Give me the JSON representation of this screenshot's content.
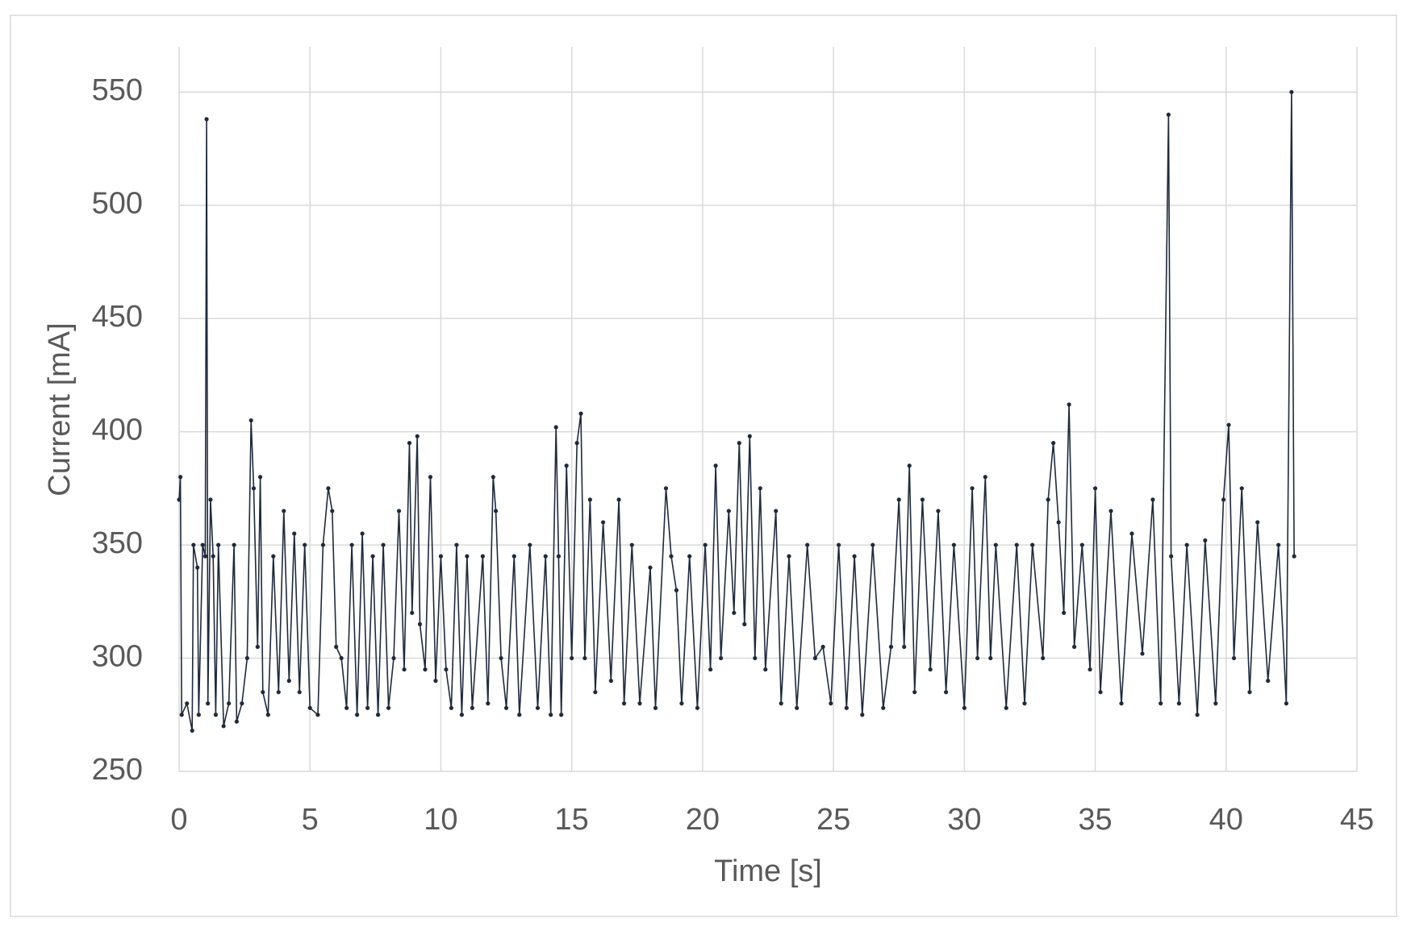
{
  "chart_data": {
    "type": "line",
    "xlabel": "Time [s]",
    "ylabel": "Current [mA]",
    "x": [
      0,
      0.05,
      0.1,
      0.3,
      0.5,
      0.55,
      0.7,
      0.75,
      0.9,
      1.0,
      1.05,
      1.1,
      1.2,
      1.3,
      1.4,
      1.5,
      1.7,
      1.9,
      2.1,
      2.2,
      2.4,
      2.6,
      2.75,
      2.85,
      3.0,
      3.1,
      3.2,
      3.4,
      3.6,
      3.8,
      4.0,
      4.2,
      4.4,
      4.6,
      4.8,
      5.0,
      5.3,
      5.5,
      5.7,
      5.85,
      6.0,
      6.2,
      6.4,
      6.6,
      6.8,
      7.0,
      7.2,
      7.4,
      7.6,
      7.8,
      8.0,
      8.2,
      8.4,
      8.6,
      8.8,
      8.9,
      9.1,
      9.2,
      9.4,
      9.6,
      9.8,
      10.0,
      10.2,
      10.4,
      10.6,
      10.8,
      11.0,
      11.2,
      11.6,
      11.8,
      12.0,
      12.1,
      12.3,
      12.5,
      12.8,
      13.0,
      13.4,
      13.7,
      14.0,
      14.2,
      14.4,
      14.5,
      14.6,
      14.8,
      15.0,
      15.2,
      15.35,
      15.5,
      15.7,
      15.9,
      16.2,
      16.5,
      16.8,
      17.0,
      17.3,
      17.6,
      18.0,
      18.2,
      18.6,
      18.8,
      19.0,
      19.2,
      19.5,
      19.8,
      20.1,
      20.3,
      20.5,
      20.7,
      21.0,
      21.2,
      21.4,
      21.6,
      21.8,
      22.0,
      22.2,
      22.4,
      22.8,
      23.0,
      23.3,
      23.6,
      24.0,
      24.3,
      24.6,
      24.9,
      25.2,
      25.5,
      25.8,
      26.1,
      26.5,
      26.9,
      27.2,
      27.5,
      27.7,
      27.9,
      28.1,
      28.4,
      28.7,
      29.0,
      29.3,
      29.6,
      30.0,
      30.3,
      30.5,
      30.8,
      31.0,
      31.2,
      31.6,
      32.0,
      32.3,
      32.6,
      33.0,
      33.2,
      33.4,
      33.6,
      33.8,
      34.0,
      34.2,
      34.5,
      34.8,
      35.0,
      35.2,
      35.6,
      36.0,
      36.4,
      36.8,
      37.2,
      37.5,
      37.8,
      37.9,
      38.2,
      38.5,
      38.9,
      39.2,
      39.6,
      39.9,
      40.1,
      40.3,
      40.6,
      40.9,
      41.2,
      41.6,
      42.0,
      42.3,
      42.5,
      42.6
    ],
    "series": [
      {
        "name": "Current",
        "color": "#1f2a3c",
        "values": [
          370,
          380,
          275,
          280,
          268,
          350,
          340,
          275,
          350,
          345,
          538,
          280,
          370,
          345,
          275,
          350,
          270,
          280,
          350,
          272,
          280,
          300,
          405,
          375,
          305,
          380,
          285,
          275,
          345,
          285,
          365,
          290,
          355,
          285,
          350,
          278,
          275,
          350,
          375,
          365,
          305,
          300,
          278,
          350,
          275,
          355,
          278,
          345,
          275,
          350,
          278,
          300,
          365,
          295,
          395,
          320,
          398,
          315,
          295,
          380,
          290,
          345,
          295,
          278,
          350,
          275,
          345,
          278,
          345,
          280,
          380,
          365,
          300,
          278,
          345,
          275,
          350,
          278,
          345,
          275,
          402,
          345,
          275,
          385,
          300,
          395,
          408,
          300,
          370,
          285,
          360,
          290,
          370,
          280,
          350,
          280,
          340,
          278,
          375,
          345,
          330,
          280,
          345,
          278,
          350,
          295,
          385,
          300,
          365,
          320,
          395,
          315,
          398,
          300,
          375,
          295,
          365,
          280,
          345,
          278,
          350,
          300,
          305,
          280,
          350,
          278,
          345,
          275,
          350,
          278,
          305,
          370,
          305,
          385,
          285,
          370,
          295,
          365,
          285,
          350,
          278,
          375,
          300,
          380,
          300,
          350,
          278,
          350,
          280,
          350,
          300,
          370,
          395,
          360,
          320,
          412,
          305,
          350,
          295,
          375,
          285,
          365,
          280,
          355,
          302,
          370,
          280,
          540,
          345,
          280,
          350,
          275,
          352,
          280,
          370,
          403,
          300,
          375,
          285,
          360,
          290,
          350,
          280,
          550,
          345
        ]
      }
    ],
    "xlim": [
      0,
      45
    ],
    "xticks": [
      0,
      5,
      10,
      15,
      20,
      25,
      30,
      35,
      40,
      45
    ],
    "ylim": [
      250,
      570
    ],
    "yticks": [
      250,
      300,
      350,
      400,
      450,
      500,
      550
    ],
    "grid": true
  }
}
